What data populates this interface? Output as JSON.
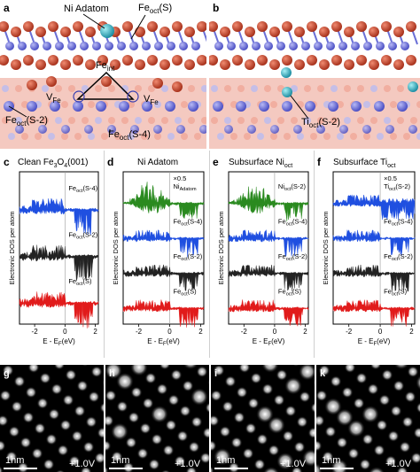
{
  "panels": {
    "a": {
      "letter": "a",
      "labels": {
        "ni_adatom": "Ni Adatom",
        "fe_oct_s": "Fe",
        "fe_oct_s_sub": "oct",
        "fe_oct_s_tail": "(S)",
        "fe_int": "Fe",
        "fe_int_sub": "int",
        "v_fe": "V",
        "v_fe_sub": "Fe",
        "fe_oct_s2": "Fe",
        "fe_oct_s2_sub": "oct",
        "fe_oct_s2_tail": "(S-2)",
        "fe_oct_s4": "Fe",
        "fe_oct_s4_sub": "oct",
        "fe_oct_s4_tail": "(S-4)"
      }
    },
    "b": {
      "letter": "b",
      "labels": {
        "ti_oct": "Ti",
        "ti_oct_sub": "oct",
        "ti_oct_tail": "(S-2)"
      }
    },
    "c": {
      "letter": "c",
      "title": "Clean Fe",
      "title_sub": "3",
      "title_mid": "O",
      "title_sub2": "4",
      "title_tail": "(001)",
      "traces": [
        {
          "label": "Fe",
          "sub": "oct",
          "tail": "(S-4)"
        },
        {
          "label": "Fe",
          "sub": "oct",
          "tail": "(S-2)"
        },
        {
          "label": "Fe",
          "sub": "oct",
          "tail": "(S)"
        }
      ],
      "ticks": [
        "-2",
        "0",
        "2"
      ]
    },
    "d": {
      "letter": "d",
      "title": "Ni Adatom",
      "traces": [
        {
          "label": "Ni",
          "sub": "Adatom",
          "tail": "",
          "scale": "×0.5"
        },
        {
          "label": "Fe",
          "sub": "oct",
          "tail": "(S-4)"
        },
        {
          "label": "Fe",
          "sub": "oct",
          "tail": "(S-2)"
        },
        {
          "label": "Fe",
          "sub": "oct",
          "tail": "(S)"
        }
      ],
      "ticks": [
        "-2",
        "0",
        "2"
      ]
    },
    "e": {
      "letter": "e",
      "title": "Subsurface Ni",
      "title_sub": "oct",
      "traces": [
        {
          "label": "Ni",
          "sub": "oct",
          "tail": "(S-2)"
        },
        {
          "label": "Fe",
          "sub": "oct",
          "tail": "(S-4)"
        },
        {
          "label": "Fe",
          "sub": "oct",
          "tail": "(S-2)"
        },
        {
          "label": "Fe",
          "sub": "oct",
          "tail": "(S)"
        }
      ],
      "ticks": [
        "-2",
        "0",
        "2"
      ]
    },
    "f": {
      "letter": "f",
      "title": "Subsurface Ti",
      "title_sub": "oct",
      "traces": [
        {
          "label": "Ti",
          "sub": "oct",
          "tail": "(S-2)",
          "scale": "×0.5"
        },
        {
          "label": "Fe",
          "sub": "oct",
          "tail": "(S-4)"
        },
        {
          "label": "Fe",
          "sub": "oct",
          "tail": "(S-2)"
        },
        {
          "label": "Fe",
          "sub": "oct",
          "tail": "(S)"
        }
      ],
      "ticks": [
        "-2",
        "0",
        "2"
      ]
    }
  },
  "axes": {
    "ylabel": "Electronic DOS per atom",
    "xlabel_pre": "E - E",
    "xlabel_sub": "F",
    "xlabel_post": "(eV)"
  },
  "stm": [
    {
      "letter": "g",
      "scale": "1nm",
      "bias": "+1.0V"
    },
    {
      "letter": "h",
      "scale": "1nm",
      "bias": "+1.0V"
    },
    {
      "letter": "i",
      "scale": "1nm",
      "bias": "+1.0V"
    },
    {
      "letter": "k",
      "scale": "1nm",
      "bias": "+1.0V"
    }
  ],
  "colors": {
    "fe_s4": "#1f4fe0",
    "fe_s2": "#222222",
    "fe_s": "#e11b1b",
    "ni": "#2a8a1f",
    "ti": "#1f4fe0",
    "oxygen": "#c8432c",
    "fe_atom": "#6a6fd6",
    "ni_atom": "#3fb8c8"
  }
}
